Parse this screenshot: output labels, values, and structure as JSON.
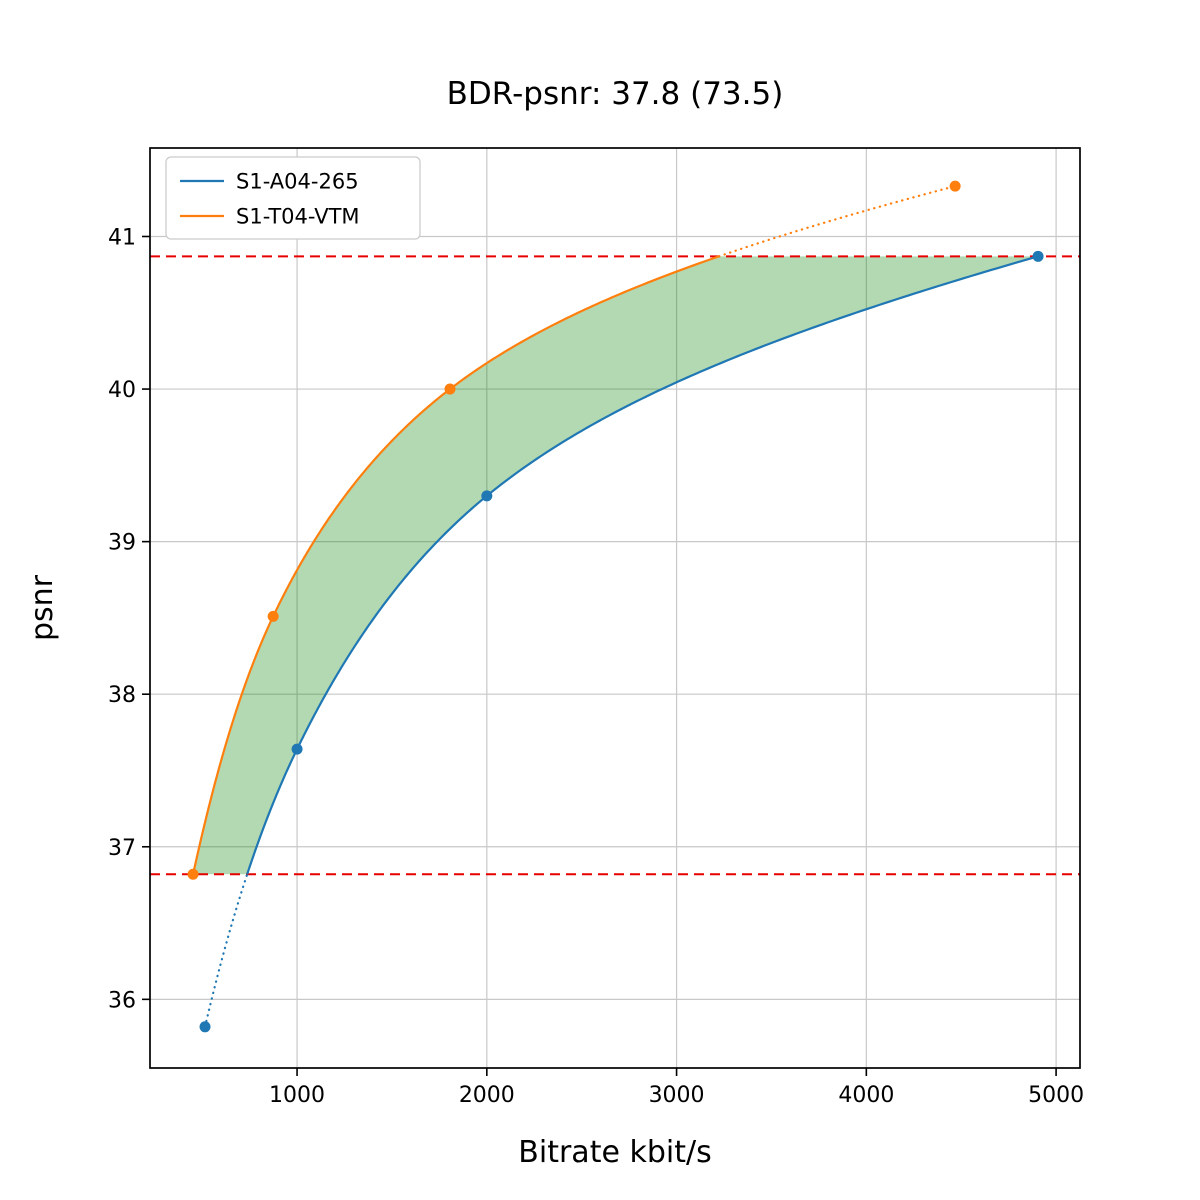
{
  "chart_data": {
    "type": "line",
    "title": "BDR-psnr: 37.8 (73.5)",
    "bdr_value": "37.8",
    "bdr_secondary_value": "73.5",
    "xlabel": "Bitrate kbit/s",
    "ylabel": "psnr",
    "xlim": [
      225,
      5126
    ],
    "ylim": [
      35.55,
      41.58
    ],
    "xticks": [
      1000,
      2000,
      3000,
      4000,
      5000
    ],
    "yticks": [
      36,
      37,
      38,
      39,
      40,
      41
    ],
    "grid": true,
    "grid_color": "#c8c8c8",
    "legend_position": "upper-left",
    "series": [
      {
        "name": "S1-A04-265",
        "color": "#1f77b4",
        "points": [
          [
            515,
            35.82
          ],
          [
            1000,
            37.64
          ],
          [
            2000,
            39.3
          ],
          [
            4905,
            40.87
          ]
        ]
      },
      {
        "name": "S1-T04-VTM",
        "color": "#ff7f0e",
        "points": [
          [
            452,
            36.82
          ],
          [
            874,
            38.51
          ],
          [
            1806,
            40.0
          ],
          [
            4468,
            41.33
          ]
        ]
      }
    ],
    "overlap_lines": {
      "color": "#e60000",
      "style": "dashed",
      "upper_psnr": 40.87,
      "lower_psnr": 36.82
    },
    "shaded_region": {
      "color": "#008000",
      "opacity": 0.3,
      "between": [
        "S1-T04-VTM",
        "S1-A04-265"
      ],
      "psnr_range": [
        36.82,
        40.87
      ]
    }
  }
}
